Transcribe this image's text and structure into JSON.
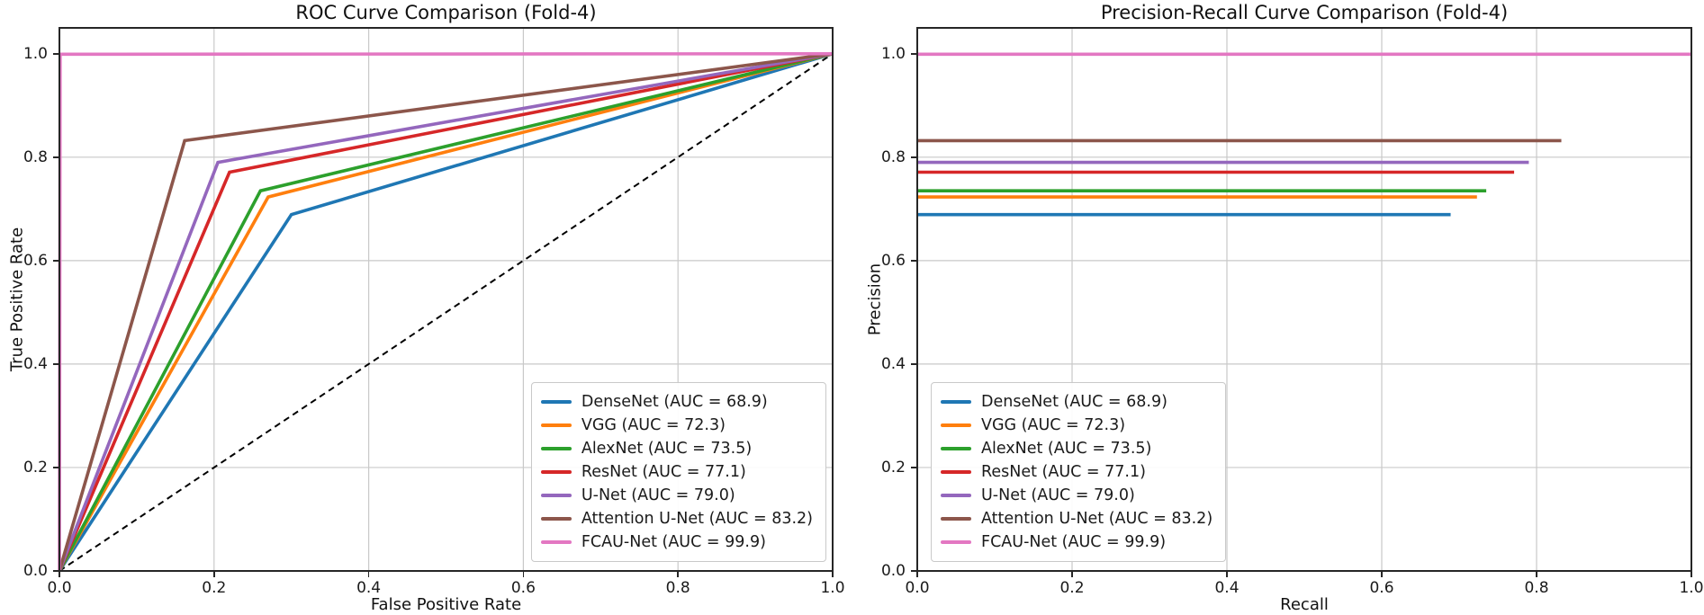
{
  "figure": {
    "background_color": "#ffffff",
    "grid_color": "#c9c9c9",
    "spine_color": "#262626",
    "fold": "Fold-4"
  },
  "chart_data": [
    {
      "type": "line",
      "title": "ROC Curve Comparison (Fold-4)",
      "xlabel": "False Positive Rate",
      "ylabel": "True Positive Rate",
      "xlim": [
        0.0,
        1.0
      ],
      "ylim": [
        0.0,
        1.05
      ],
      "xticks": [
        0.0,
        0.2,
        0.4,
        0.6,
        0.8,
        1.0
      ],
      "yticks": [
        0.0,
        0.2,
        0.4,
        0.6,
        0.8,
        1.0
      ],
      "grid": true,
      "legend_position": "lower right",
      "reference_line": {
        "name": "chance-diagonal",
        "style": "dashed",
        "color": "#000000",
        "points": [
          [
            0.0,
            0.0
          ],
          [
            1.0,
            1.0
          ]
        ]
      },
      "series": [
        {
          "name": "DenseNet (AUC = 68.9)",
          "model": "DenseNet",
          "auc": 68.9,
          "color": "#1f77b4",
          "points": [
            [
              0.0,
              0.0
            ],
            [
              0.3,
              0.689
            ],
            [
              1.0,
              1.0
            ]
          ]
        },
        {
          "name": "VGG (AUC = 72.3)",
          "model": "VGG",
          "auc": 72.3,
          "color": "#ff7f0e",
          "points": [
            [
              0.0,
              0.0
            ],
            [
              0.27,
              0.723
            ],
            [
              1.0,
              1.0
            ]
          ]
        },
        {
          "name": "AlexNet (AUC = 73.5)",
          "model": "AlexNet",
          "auc": 73.5,
          "color": "#2ca02c",
          "points": [
            [
              0.0,
              0.0
            ],
            [
              0.26,
              0.735
            ],
            [
              1.0,
              1.0
            ]
          ]
        },
        {
          "name": "ResNet (AUC = 77.1)",
          "model": "ResNet",
          "auc": 77.1,
          "color": "#d62728",
          "points": [
            [
              0.0,
              0.0
            ],
            [
              0.22,
              0.771
            ],
            [
              1.0,
              1.0
            ]
          ]
        },
        {
          "name": "U-Net (AUC = 79.0)",
          "model": "U-Net",
          "auc": 79.0,
          "color": "#9467bd",
          "points": [
            [
              0.0,
              0.0
            ],
            [
              0.205,
              0.79
            ],
            [
              1.0,
              1.0
            ]
          ]
        },
        {
          "name": "Attention U-Net (AUC = 83.2)",
          "model": "Attention U-Net",
          "auc": 83.2,
          "color": "#8c564b",
          "points": [
            [
              0.0,
              0.0
            ],
            [
              0.162,
              0.832
            ],
            [
              1.0,
              1.0
            ]
          ]
        },
        {
          "name": "FCAU-Net (AUC = 99.9)",
          "model": "FCAU-Net",
          "auc": 99.9,
          "color": "#e377c2",
          "points": [
            [
              0.0,
              0.0
            ],
            [
              0.001,
              0.999
            ],
            [
              1.0,
              1.0
            ]
          ]
        }
      ]
    },
    {
      "type": "line",
      "title": "Precision-Recall Curve Comparison (Fold-4)",
      "xlabel": "Recall",
      "ylabel": "Precision",
      "xlim": [
        0.0,
        1.0
      ],
      "ylim": [
        0.0,
        1.05
      ],
      "xticks": [
        0.0,
        0.2,
        0.4,
        0.6,
        0.8,
        1.0
      ],
      "yticks": [
        0.0,
        0.2,
        0.4,
        0.6,
        0.8,
        1.0
      ],
      "grid": true,
      "legend_position": "lower left",
      "series": [
        {
          "name": "DenseNet (AUC = 68.9)",
          "model": "DenseNet",
          "auc": 68.9,
          "color": "#1f77b4",
          "points": [
            [
              0.0,
              0.689
            ],
            [
              0.689,
              0.689
            ]
          ]
        },
        {
          "name": "VGG (AUC = 72.3)",
          "model": "VGG",
          "auc": 72.3,
          "color": "#ff7f0e",
          "points": [
            [
              0.0,
              0.723
            ],
            [
              0.723,
              0.723
            ]
          ]
        },
        {
          "name": "AlexNet (AUC = 73.5)",
          "model": "AlexNet",
          "auc": 73.5,
          "color": "#2ca02c",
          "points": [
            [
              0.0,
              0.735
            ],
            [
              0.735,
              0.735
            ]
          ]
        },
        {
          "name": "ResNet (AUC = 77.1)",
          "model": "ResNet",
          "auc": 77.1,
          "color": "#d62728",
          "points": [
            [
              0.0,
              0.771
            ],
            [
              0.771,
              0.771
            ]
          ]
        },
        {
          "name": "U-Net (AUC = 79.0)",
          "model": "U-Net",
          "auc": 79.0,
          "color": "#9467bd",
          "points": [
            [
              0.0,
              0.79
            ],
            [
              0.79,
              0.79
            ]
          ]
        },
        {
          "name": "Attention U-Net (AUC = 83.2)",
          "model": "Attention U-Net",
          "auc": 83.2,
          "color": "#8c564b",
          "points": [
            [
              0.0,
              0.832
            ],
            [
              0.832,
              0.832
            ]
          ]
        },
        {
          "name": "FCAU-Net (AUC = 99.9)",
          "model": "FCAU-Net",
          "auc": 99.9,
          "color": "#e377c2",
          "points": [
            [
              0.0,
              0.999
            ],
            [
              0.999,
              0.999
            ]
          ]
        }
      ]
    }
  ]
}
